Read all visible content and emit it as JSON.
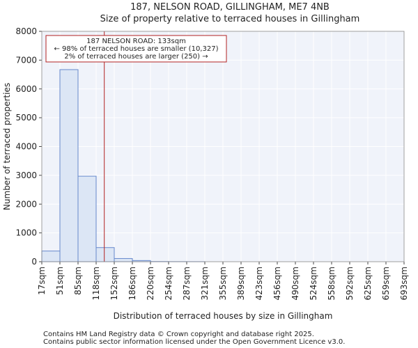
{
  "chart_data": {
    "type": "bar",
    "title": "187, NELSON ROAD, GILLINGHAM, ME7 4NB",
    "subtitle": "Size of property relative to terraced houses in Gillingham",
    "xlabel": "Distribution of terraced houses by size in Gillingham",
    "ylabel": "Number of terraced properties",
    "ylim": [
      0,
      8000
    ],
    "yticks": [
      0,
      1000,
      2000,
      3000,
      4000,
      5000,
      6000,
      7000,
      8000
    ],
    "categories": [
      "17sqm",
      "51sqm",
      "85sqm",
      "118sqm",
      "152sqm",
      "186sqm",
      "220sqm",
      "254sqm",
      "287sqm",
      "321sqm",
      "355sqm",
      "389sqm",
      "423sqm",
      "456sqm",
      "490sqm",
      "524sqm",
      "558sqm",
      "592sqm",
      "625sqm",
      "659sqm",
      "693sqm"
    ],
    "values": [
      370,
      6670,
      2970,
      490,
      110,
      40,
      5,
      2,
      1,
      0,
      0,
      0,
      0,
      0,
      0,
      0,
      0,
      0,
      0,
      0,
      0
    ],
    "marker": {
      "bin_position": 3.45,
      "label_lines": [
        "187 NELSON ROAD: 133sqm",
        "← 98% of terraced houses are smaller (10,327)",
        "2% of terraced houses are larger (250) →"
      ],
      "color": "#b22222"
    },
    "bar_fill": "#dce6f5",
    "bar_stroke": "#6688cc",
    "plot_bg": "#f0f3fa",
    "grid_color": "#ffffff"
  },
  "footer": {
    "line1": "Contains HM Land Registry data © Crown copyright and database right 2025.",
    "line2": "Contains public sector information licensed under the Open Government Licence v3.0."
  }
}
